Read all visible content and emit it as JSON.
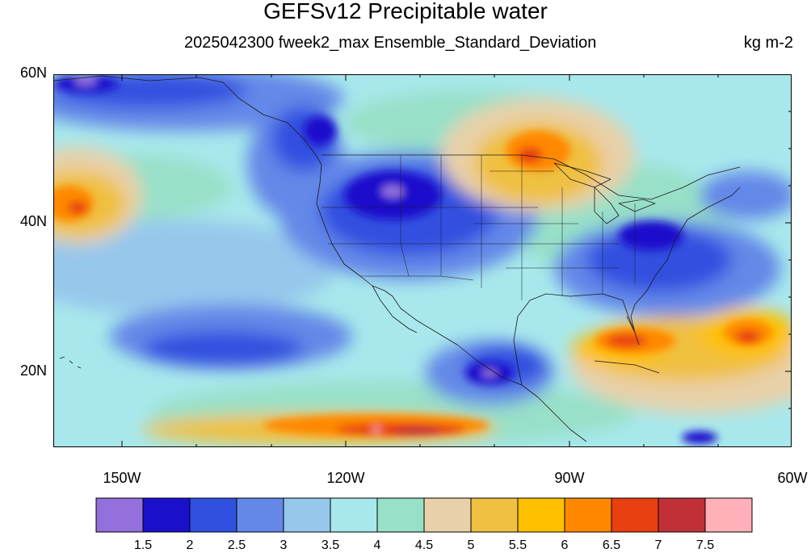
{
  "title": "GEFSv12 Precipitable water",
  "subtitle": "2025042300 fweek2_max Ensemble_Standard_Deviation",
  "units": "kg m-2",
  "lat_labels": [
    "60N",
    "40N",
    "20N"
  ],
  "lon_labels": [
    "150W",
    "120W",
    "90W",
    "60W"
  ],
  "colorbar": {
    "colors": [
      "#9370DB",
      "#1a10cc",
      "#3050e0",
      "#6488e8",
      "#96c8ec",
      "#a8e8ec",
      "#98e0c8",
      "#e8d0a8",
      "#f0c040",
      "#ffc000",
      "#ff8800",
      "#e84010",
      "#c03038",
      "#ffb0b8"
    ],
    "labels": [
      "1.5",
      "2",
      "2.5",
      "3",
      "3.5",
      "4",
      "4.5",
      "5",
      "5.5",
      "6",
      "6.5",
      "7",
      "7.5"
    ]
  },
  "map": {
    "lat_range": [
      10,
      60
    ],
    "lon_range": [
      -160,
      -60
    ]
  }
}
